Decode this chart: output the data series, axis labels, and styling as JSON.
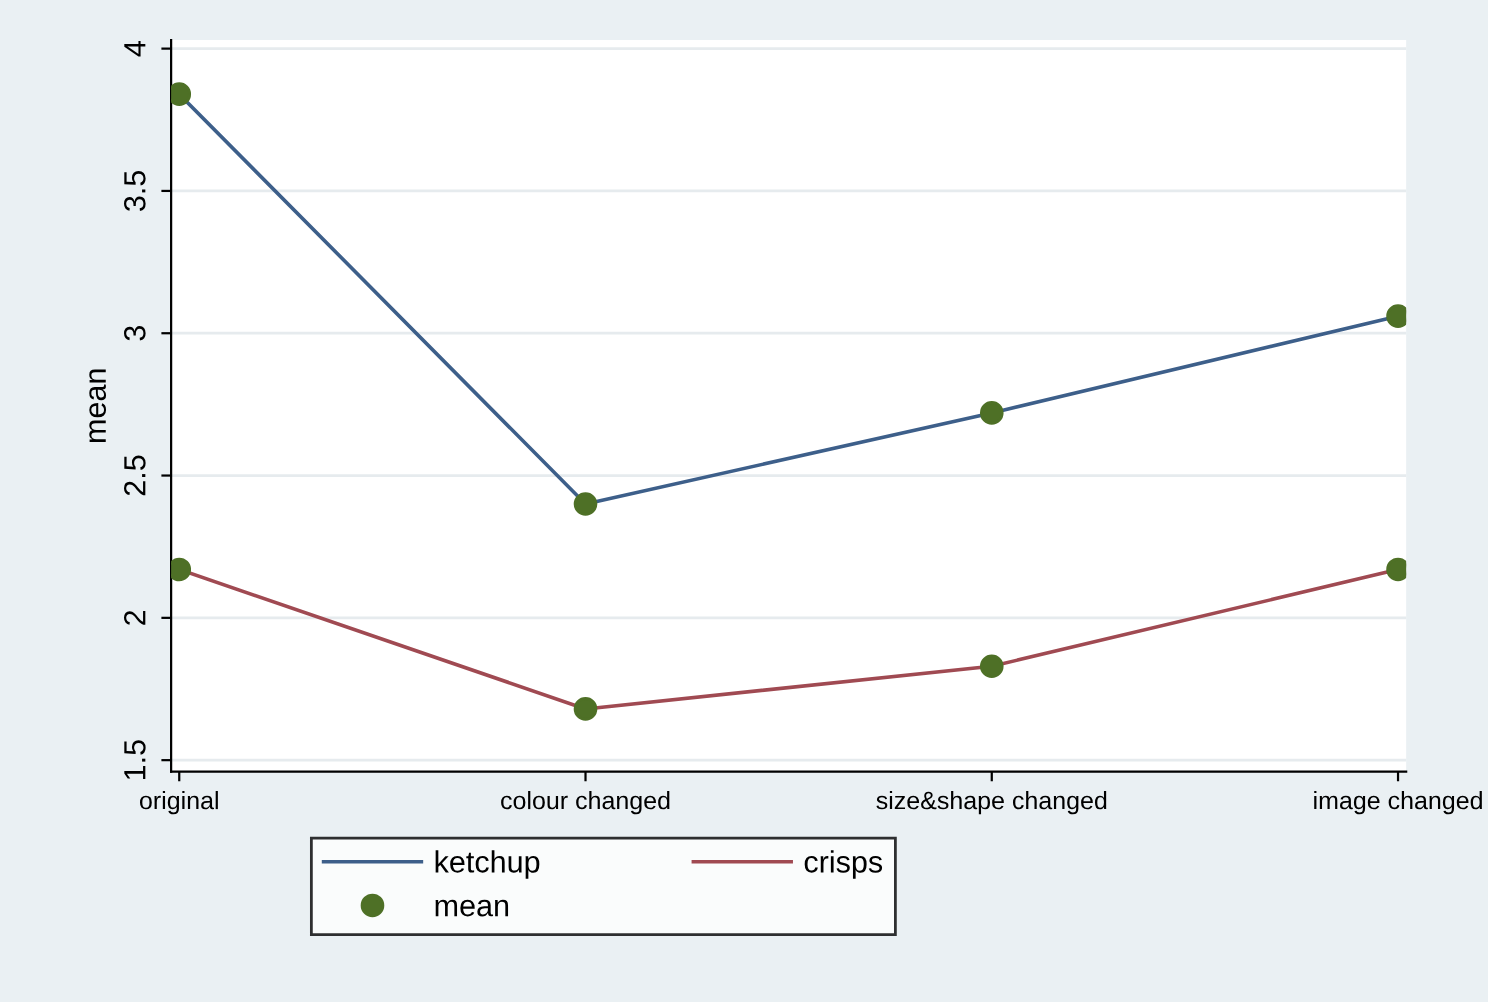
{
  "chart_data": {
    "type": "line",
    "ylabel": "mean",
    "categories": [
      "original",
      "colour changed",
      "size&shape changed",
      "image changed"
    ],
    "series": [
      {
        "name": "ketchup",
        "color": "#3d5f8a",
        "values": [
          3.84,
          2.4,
          2.72,
          3.06
        ]
      },
      {
        "name": "crisps",
        "color": "#a04a52",
        "values": [
          2.17,
          1.68,
          1.83,
          2.17
        ]
      },
      {
        "name": "mean",
        "type": "scatter",
        "marker": "circle",
        "color": "#4e7026",
        "x": [
          "original",
          "colour changed",
          "size&shape changed",
          "image changed",
          "original",
          "colour changed",
          "size&shape changed",
          "image changed"
        ],
        "values": [
          3.84,
          2.4,
          2.72,
          3.06,
          2.17,
          1.68,
          1.83,
          2.17
        ]
      }
    ],
    "ylim": [
      1.46,
      4.03
    ],
    "yticks": [
      1.5,
      2,
      2.5,
      3,
      3.5,
      4
    ],
    "grid": "y",
    "legend": "bottom",
    "marker": "none",
    "line_style": "solid"
  }
}
